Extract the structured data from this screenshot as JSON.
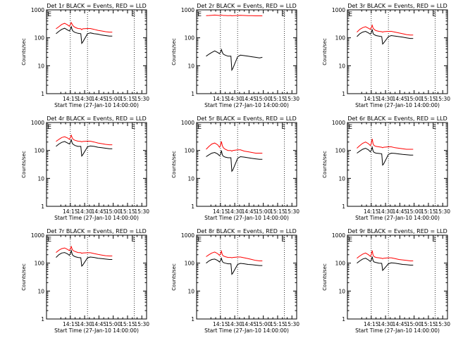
{
  "colors": {
    "events": "#000000",
    "lld": "#ff0000",
    "frame": "#000000"
  },
  "chart_data": [
    {
      "type": "line",
      "title": "Det 1r BLACK = Events, RED = LLD",
      "xlabel": "Start Time (27-Jan-10 14:00:00)",
      "ylabel": "Counts/sec",
      "yscale": "log",
      "ylim": [
        1,
        1000
      ],
      "x_ticks": [
        "14:15",
        "14:30",
        "14:45",
        "15:00",
        "15:15",
        "15:30"
      ],
      "y_ticks": [
        "1",
        "10",
        "100",
        "1000"
      ],
      "markers": [
        "E",
        "E"
      ],
      "x": [
        0,
        3,
        6,
        9,
        12,
        14,
        15,
        16,
        17,
        18,
        20,
        23,
        26,
        27,
        28,
        33,
        36,
        40,
        44,
        48,
        52,
        56,
        59
      ],
      "series": [
        {
          "name": "LLD",
          "color": "#ff0000",
          "values": [
            210,
            250,
            300,
            330,
            290,
            260,
            300,
            350,
            300,
            265,
            235,
            215,
            210,
            195,
            210,
            215,
            215,
            200,
            185,
            175,
            165,
            160,
            160
          ]
        },
        {
          "name": "Events",
          "color": "#000000",
          "values": [
            140,
            170,
            200,
            220,
            190,
            175,
            200,
            250,
            190,
            170,
            155,
            145,
            140,
            63,
            70,
            140,
            150,
            140,
            135,
            125,
            120,
            115,
            115
          ]
        }
      ]
    },
    {
      "type": "line",
      "title": "Det 2r BLACK = Events, RED = LLD",
      "xlabel": "Start Time (27-Jan-10 14:00:00)",
      "ylabel": "Counts/sec",
      "yscale": "log",
      "ylim": [
        1,
        1000
      ],
      "x_ticks": [
        "14:15",
        "14:30",
        "14:45",
        "15:00",
        "15:15",
        "15:30"
      ],
      "y_ticks": [
        "1",
        "10",
        "100",
        "1000"
      ],
      "markers": [
        "E",
        "E"
      ],
      "x": [
        0,
        3,
        6,
        9,
        12,
        14,
        15,
        16,
        17,
        18,
        20,
        23,
        26,
        27,
        28,
        33,
        36,
        40,
        44,
        48,
        52,
        56,
        59
      ],
      "series": [
        {
          "name": "LLD",
          "color": "#ff0000",
          "values": [
            620,
            630,
            640,
            650,
            640,
            630,
            640,
            650,
            640,
            630,
            630,
            620,
            630,
            610,
            620,
            630,
            640,
            630,
            620,
            620,
            610,
            610,
            610
          ]
        },
        {
          "name": "Events",
          "color": "#000000",
          "values": [
            22,
            26,
            30,
            34,
            30,
            27,
            30,
            38,
            30,
            26,
            24,
            22,
            22,
            7,
            8,
            21,
            24,
            23,
            22,
            21,
            20,
            19,
            20
          ]
        }
      ]
    },
    {
      "type": "line",
      "title": "Det 3r BLACK = Events, RED = LLD",
      "xlabel": "Start Time (27-Jan-10 14:00:00)",
      "ylabel": "Counts/sec",
      "yscale": "log",
      "ylim": [
        1,
        1000
      ],
      "x_ticks": [
        "14:15",
        "14:30",
        "14:45",
        "15:00",
        "15:15",
        "15:30"
      ],
      "y_ticks": [
        "1",
        "10",
        "100",
        "1000"
      ],
      "markers": [
        "E",
        "E"
      ],
      "x": [
        0,
        3,
        6,
        9,
        12,
        14,
        15,
        16,
        17,
        18,
        20,
        23,
        26,
        27,
        28,
        33,
        36,
        40,
        44,
        48,
        52,
        56,
        59
      ],
      "series": [
        {
          "name": "LLD",
          "color": "#ff0000",
          "values": [
            160,
            200,
            230,
            250,
            220,
            200,
            230,
            280,
            220,
            200,
            180,
            170,
            165,
            160,
            165,
            170,
            170,
            160,
            150,
            140,
            130,
            125,
            125
          ]
        },
        {
          "name": "Events",
          "color": "#000000",
          "values": [
            110,
            140,
            160,
            170,
            150,
            135,
            150,
            200,
            140,
            130,
            120,
            115,
            110,
            60,
            65,
            110,
            120,
            115,
            110,
            105,
            100,
            95,
            95
          ]
        }
      ]
    },
    {
      "type": "line",
      "title": "Det 4r BLACK = Events, RED = LLD",
      "xlabel": "Start Time (27-Jan-10 14:00:00)",
      "ylabel": "Counts/sec",
      "yscale": "log",
      "ylim": [
        1,
        1000
      ],
      "x_ticks": [
        "14:15",
        "14:30",
        "14:45",
        "15:00",
        "15:15",
        "15:30"
      ],
      "y_ticks": [
        "1",
        "10",
        "100",
        "1000"
      ],
      "markers": [
        "E",
        "E"
      ],
      "x": [
        0,
        3,
        6,
        9,
        12,
        14,
        15,
        16,
        17,
        18,
        20,
        23,
        26,
        27,
        28,
        33,
        36,
        40,
        44,
        48,
        52,
        56,
        59
      ],
      "series": [
        {
          "name": "LLD",
          "color": "#ff0000",
          "values": [
            210,
            250,
            290,
            310,
            280,
            250,
            290,
            350,
            280,
            250,
            230,
            215,
            210,
            205,
            210,
            215,
            215,
            200,
            185,
            175,
            165,
            160,
            160
          ]
        },
        {
          "name": "Events",
          "color": "#000000",
          "values": [
            140,
            170,
            195,
            210,
            185,
            170,
            195,
            240,
            180,
            165,
            150,
            140,
            140,
            63,
            70,
            135,
            145,
            140,
            130,
            125,
            120,
            115,
            115
          ]
        }
      ]
    },
    {
      "type": "line",
      "title": "Det 5r BLACK = Events, RED = LLD",
      "xlabel": "Start Time (27-Jan-10 14:00:00)",
      "ylabel": "Counts/sec",
      "yscale": "log",
      "ylim": [
        1,
        1000
      ],
      "x_ticks": [
        "14:15",
        "14:30",
        "14:45",
        "15:00",
        "15:15",
        "15:30"
      ],
      "y_ticks": [
        "1",
        "10",
        "100",
        "1000"
      ],
      "markers": [
        "E",
        "E"
      ],
      "x": [
        0,
        3,
        6,
        9,
        12,
        14,
        15,
        16,
        17,
        18,
        20,
        23,
        26,
        27,
        28,
        33,
        36,
        40,
        44,
        48,
        52,
        56,
        59
      ],
      "series": [
        {
          "name": "LLD",
          "color": "#ff0000",
          "values": [
            110,
            140,
            170,
            185,
            160,
            130,
            150,
            210,
            150,
            125,
            110,
            100,
            100,
            95,
            100,
            105,
            105,
            95,
            90,
            85,
            80,
            80,
            80
          ]
        },
        {
          "name": "Events",
          "color": "#000000",
          "values": [
            60,
            70,
            80,
            85,
            75,
            65,
            70,
            100,
            70,
            62,
            58,
            55,
            55,
            18,
            20,
            52,
            60,
            58,
            55,
            52,
            50,
            48,
            48
          ]
        }
      ]
    },
    {
      "type": "line",
      "title": "Det 6r BLACK = Events, RED = LLD",
      "xlabel": "Start Time (27-Jan-10 14:00:00)",
      "ylabel": "Counts/sec",
      "yscale": "log",
      "ylim": [
        1,
        1000
      ],
      "x_ticks": [
        "14:15",
        "14:30",
        "14:45",
        "15:00",
        "15:15",
        "15:30"
      ],
      "y_ticks": [
        "1",
        "10",
        "100",
        "1000"
      ],
      "markers": [
        "E",
        "E"
      ],
      "x": [
        0,
        3,
        6,
        9,
        12,
        14,
        15,
        16,
        17,
        18,
        20,
        23,
        26,
        27,
        28,
        33,
        36,
        40,
        44,
        48,
        52,
        56,
        59
      ],
      "series": [
        {
          "name": "LLD",
          "color": "#ff0000",
          "values": [
            120,
            150,
            180,
            200,
            175,
            150,
            175,
            260,
            170,
            150,
            140,
            135,
            130,
            125,
            130,
            135,
            135,
            125,
            120,
            115,
            110,
            110,
            110
          ]
        },
        {
          "name": "Events",
          "color": "#000000",
          "values": [
            80,
            95,
            110,
            120,
            105,
            90,
            100,
            130,
            95,
            85,
            80,
            78,
            76,
            30,
            33,
            72,
            80,
            78,
            75,
            72,
            70,
            68,
            68
          ]
        }
      ]
    },
    {
      "type": "line",
      "title": "Det 7r BLACK = Events, RED = LLD",
      "xlabel": "Start Time (27-Jan-10 14:00:00)",
      "ylabel": "Counts/sec",
      "yscale": "log",
      "ylim": [
        1,
        1000
      ],
      "x_ticks": [
        "14:15",
        "14:30",
        "14:45",
        "15:00",
        "15:15",
        "15:30"
      ],
      "y_ticks": [
        "1",
        "10",
        "100",
        "1000"
      ],
      "markers": [
        "E",
        "E"
      ],
      "x": [
        0,
        3,
        6,
        9,
        12,
        14,
        15,
        16,
        17,
        18,
        20,
        23,
        26,
        27,
        28,
        33,
        36,
        40,
        44,
        48,
        52,
        56,
        59
      ],
      "series": [
        {
          "name": "LLD",
          "color": "#ff0000",
          "values": [
            240,
            290,
            330,
            350,
            310,
            280,
            320,
            390,
            310,
            280,
            260,
            240,
            235,
            225,
            230,
            235,
            235,
            220,
            205,
            195,
            185,
            180,
            180
          ]
        },
        {
          "name": "Events",
          "color": "#000000",
          "values": [
            160,
            200,
            230,
            240,
            215,
            190,
            215,
            280,
            205,
            185,
            170,
            160,
            155,
            78,
            85,
            155,
            165,
            160,
            150,
            145,
            140,
            135,
            135
          ]
        }
      ]
    },
    {
      "type": "line",
      "title": "Det 8r BLACK = Events, RED = LLD",
      "xlabel": "Start Time (27-Jan-10 14:00:00)",
      "ylabel": "Counts/sec",
      "yscale": "log",
      "ylim": [
        1,
        1000
      ],
      "x_ticks": [
        "14:15",
        "14:30",
        "14:45",
        "15:00",
        "15:15",
        "15:30"
      ],
      "y_ticks": [
        "1",
        "10",
        "100",
        "1000"
      ],
      "markers": [
        "E",
        "E"
      ],
      "x": [
        0,
        3,
        6,
        9,
        12,
        14,
        15,
        16,
        17,
        18,
        20,
        23,
        26,
        27,
        28,
        33,
        36,
        40,
        44,
        48,
        52,
        56,
        59
      ],
      "series": [
        {
          "name": "LLD",
          "color": "#ff0000",
          "values": [
            170,
            200,
            230,
            250,
            220,
            190,
            210,
            270,
            200,
            180,
            170,
            160,
            160,
            155,
            160,
            165,
            165,
            155,
            145,
            135,
            125,
            120,
            120
          ]
        },
        {
          "name": "Events",
          "color": "#000000",
          "values": [
            100,
            120,
            135,
            140,
            125,
            110,
            120,
            150,
            115,
            105,
            100,
            95,
            95,
            40,
            44,
            90,
            98,
            95,
            90,
            88,
            85,
            82,
            82
          ]
        }
      ]
    },
    {
      "type": "line",
      "title": "Det 9r BLACK = Events, RED = LLD",
      "xlabel": "Start Time (27-Jan-10 14:00:00)",
      "ylabel": "Counts/sec",
      "yscale": "log",
      "ylim": [
        1,
        1000
      ],
      "x_ticks": [
        "14:15",
        "14:30",
        "14:45",
        "15:00",
        "15:15",
        "15:30"
      ],
      "y_ticks": [
        "1",
        "10",
        "100",
        "1000"
      ],
      "markers": [
        "E",
        "E"
      ],
      "x": [
        0,
        3,
        6,
        9,
        12,
        14,
        15,
        16,
        17,
        18,
        20,
        23,
        26,
        27,
        28,
        33,
        36,
        40,
        44,
        48,
        52,
        56,
        59
      ],
      "series": [
        {
          "name": "LLD",
          "color": "#ff0000",
          "values": [
            150,
            180,
            210,
            230,
            200,
            175,
            200,
            280,
            190,
            170,
            160,
            155,
            150,
            145,
            150,
            155,
            155,
            145,
            135,
            130,
            125,
            120,
            120
          ]
        },
        {
          "name": "Events",
          "color": "#000000",
          "values": [
            100,
            120,
            140,
            150,
            130,
            115,
            125,
            170,
            120,
            110,
            105,
            100,
            98,
            55,
            60,
            95,
            102,
            100,
            95,
            90,
            88,
            85,
            85
          ]
        }
      ]
    }
  ]
}
